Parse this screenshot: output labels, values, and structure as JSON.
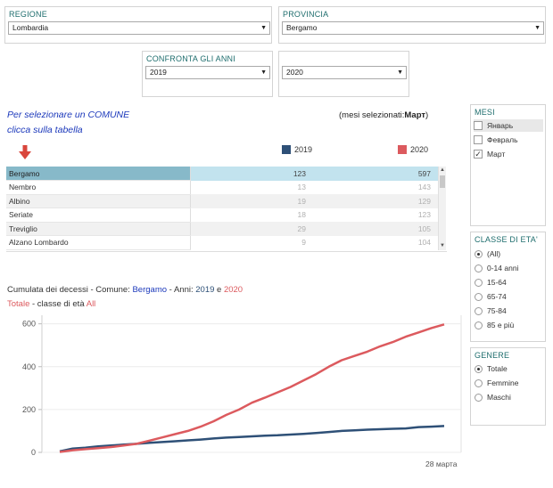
{
  "filters": {
    "regione": {
      "title": "REGIONE",
      "value": "Lombardia"
    },
    "provincia": {
      "title": "PROVINCIA",
      "value": "Bergamo"
    },
    "confronta": {
      "title": "CONFRONTA GLI ANNI",
      "year_a": "2019",
      "year_b": "2020"
    }
  },
  "hint": {
    "line1": "Per selezionare un COMUNE",
    "line2": "clicca sulla tabella"
  },
  "selected_months_prefix": "(mesi selezionati:",
  "selected_months_value": "Март",
  "selected_months_suffix": ")",
  "legend": {
    "y2019": {
      "label": "2019",
      "color": "#2e5077"
    },
    "y2020": {
      "label": "2020",
      "color": "#dc5a5e"
    }
  },
  "arrow_icon_color": "#d9463c",
  "table": {
    "rows": [
      {
        "name": "Bergamo",
        "v2019": "123",
        "v2020": "597"
      },
      {
        "name": "Nembro",
        "v2019": "13",
        "v2020": "143"
      },
      {
        "name": "Albino",
        "v2019": "19",
        "v2020": "129"
      },
      {
        "name": "Seriate",
        "v2019": "18",
        "v2020": "123"
      },
      {
        "name": "Treviglio",
        "v2019": "29",
        "v2020": "105"
      },
      {
        "name": "Alzano Lombardo",
        "v2019": "9",
        "v2020": "104"
      }
    ]
  },
  "mesi": {
    "title": "MESI",
    "items": [
      {
        "label": "Январь",
        "checked": false
      },
      {
        "label": "Февраль",
        "checked": false
      },
      {
        "label": "Март",
        "checked": true
      }
    ]
  },
  "classe": {
    "title": "CLASSE DI ETA'",
    "items": [
      {
        "label": "(All)",
        "on": true
      },
      {
        "label": "0-14 anni",
        "on": false
      },
      {
        "label": "15-64",
        "on": false
      },
      {
        "label": "65-74",
        "on": false
      },
      {
        "label": "75-84",
        "on": false
      },
      {
        "label": "85 e più",
        "on": false
      }
    ]
  },
  "genere": {
    "title": "GENERE",
    "items": [
      {
        "label": "Totale",
        "on": true
      },
      {
        "label": "Femmine",
        "on": false
      },
      {
        "label": "Maschi",
        "on": false
      }
    ]
  },
  "chart_title": {
    "part1": "Cumulata dei decessi - Comune: ",
    "comune": "Bergamo",
    "part2": " - Anni: ",
    "year_a": "2019",
    "and": " e ",
    "year_b": "2020",
    "totale": "Totale",
    "part3": " - classe di età ",
    "eta": "All"
  },
  "chart_data": {
    "type": "line",
    "ylim": [
      0,
      640
    ],
    "yticks": [
      0,
      200,
      400,
      600
    ],
    "x_end_label": "28 марта",
    "series": [
      {
        "name": "2019",
        "color": "#2e5077",
        "values": [
          5,
          18,
          22,
          28,
          32,
          36,
          40,
          45,
          48,
          52,
          56,
          60,
          65,
          69,
          72,
          75,
          78,
          80,
          83,
          86,
          90,
          95,
          100,
          103,
          106,
          108,
          110,
          112,
          118,
          120,
          123
        ]
      },
      {
        "name": "2020",
        "color": "#dc5a5e",
        "values": [
          2,
          10,
          15,
          20,
          25,
          32,
          40,
          55,
          70,
          85,
          100,
          120,
          145,
          175,
          200,
          232,
          255,
          280,
          305,
          335,
          365,
          400,
          430,
          450,
          470,
          495,
          515,
          540,
          560,
          580,
          597
        ]
      }
    ]
  }
}
